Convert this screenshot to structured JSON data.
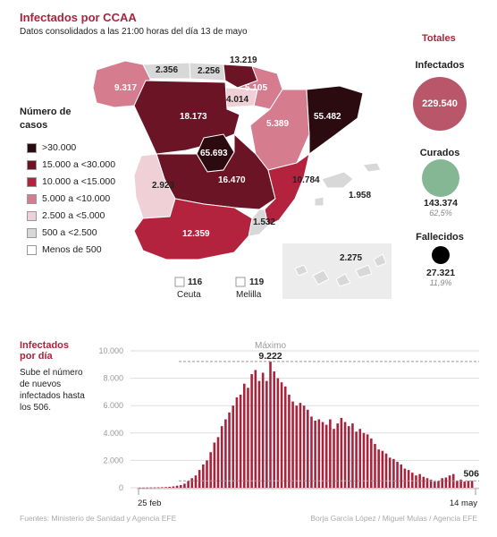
{
  "header": {
    "title": "Infectados por CCAA",
    "subtitle": "Datos consolidados a las 21:00 horas del día 13 de mayo"
  },
  "legend": {
    "title": "Número de casos",
    "items": [
      {
        "label": ">30.000",
        "color": "#2b0a10"
      },
      {
        "label": "15.000 a <30.000",
        "color": "#6b1425"
      },
      {
        "label": "10.000 a <15.000",
        "color": "#b3233e"
      },
      {
        "label": "5.000 a <10.000",
        "color": "#d67c8f"
      },
      {
        "label": "2.500 a <5.000",
        "color": "#eed0d6"
      },
      {
        "label": "500 a <2.500",
        "color": "#d8d8d8"
      },
      {
        "label": "Menos de 500",
        "color": "#ffffff"
      }
    ]
  },
  "map": {
    "regions": [
      {
        "name": "Galicia",
        "value": "9.317"
      },
      {
        "name": "Asturias",
        "value": "2.356"
      },
      {
        "name": "Cantabria",
        "value": "2.256"
      },
      {
        "name": "País Vasco",
        "value": "13.219"
      },
      {
        "name": "Navarra",
        "value": "5.105"
      },
      {
        "name": "La Rioja",
        "value": "4.014"
      },
      {
        "name": "Castilla y León",
        "value": "18.173"
      },
      {
        "name": "Aragón",
        "value": "5.389"
      },
      {
        "name": "Cataluña",
        "value": "55.482"
      },
      {
        "name": "Madrid",
        "value": "65.693"
      },
      {
        "name": "Castilla-La Mancha",
        "value": "16.470"
      },
      {
        "name": "Extremadura",
        "value": "2.923"
      },
      {
        "name": "Comunidad Valenciana",
        "value": "10.784"
      },
      {
        "name": "Baleares",
        "value": "1.958"
      },
      {
        "name": "Murcia",
        "value": "1.532"
      },
      {
        "name": "Andalucía",
        "value": "12.359"
      },
      {
        "name": "Canarias",
        "value": "2.275"
      }
    ],
    "ceuta": {
      "value": "116",
      "label": "Ceuta"
    },
    "melilla": {
      "value": "119",
      "label": "Melilla"
    }
  },
  "totals": {
    "title": "Totales",
    "infectados": {
      "label": "Infectados",
      "value": "229.540",
      "color": "#b9566a"
    },
    "curados": {
      "label": "Curados",
      "value": "143.374",
      "pct": "62,5%",
      "color": "#86b795"
    },
    "fallecidos": {
      "label": "Fallecidos",
      "value": "27.321",
      "pct": "11,9%",
      "color": "#000000"
    }
  },
  "daily": {
    "title_line1": "Infectados",
    "title_line2": "por día",
    "desc": "Sube el número de nuevos infectados hasta los 506.",
    "max_label": "Máximo",
    "max_value": "9.222",
    "last_value": "506",
    "start_label": "25 feb",
    "end_label": "14 may"
  },
  "chart_data": {
    "type": "bar",
    "title": "Infectados por día",
    "x_start": "25 feb",
    "x_end": "14 may",
    "yticks": [
      "0",
      "2.000",
      "4.000",
      "6.000",
      "8.000",
      "10.000"
    ],
    "ylim": [
      0,
      10000
    ],
    "bar_color": "#a8243d",
    "values": [
      10,
      10,
      15,
      20,
      25,
      30,
      40,
      50,
      70,
      100,
      150,
      200,
      300,
      500,
      700,
      900,
      1300,
      1700,
      2000,
      2600,
      3300,
      3700,
      4500,
      5000,
      5500,
      6000,
      6600,
      6800,
      7600,
      7300,
      8300,
      8600,
      7800,
      8400,
      7800,
      9222,
      8500,
      8000,
      7700,
      7400,
      6800,
      6300,
      6000,
      6200,
      6000,
      5700,
      5200,
      4900,
      5000,
      4800,
      4600,
      5000,
      4300,
      4700,
      5100,
      4800,
      4500,
      4700,
      4100,
      4300,
      4000,
      3900,
      3600,
      3200,
      2800,
      2700,
      2500,
      2200,
      2100,
      1900,
      1700,
      1400,
      1300,
      1100,
      900,
      1000,
      800,
      700,
      600,
      450,
      500,
      700,
      750,
      900,
      1000,
      500,
      600,
      450,
      500,
      506
    ]
  },
  "footer": {
    "left": "Fuentes: Ministerio de Sanidad y Agencia EFE",
    "right": "Borja García López / Miguel Mulas / Agencia EFE"
  }
}
